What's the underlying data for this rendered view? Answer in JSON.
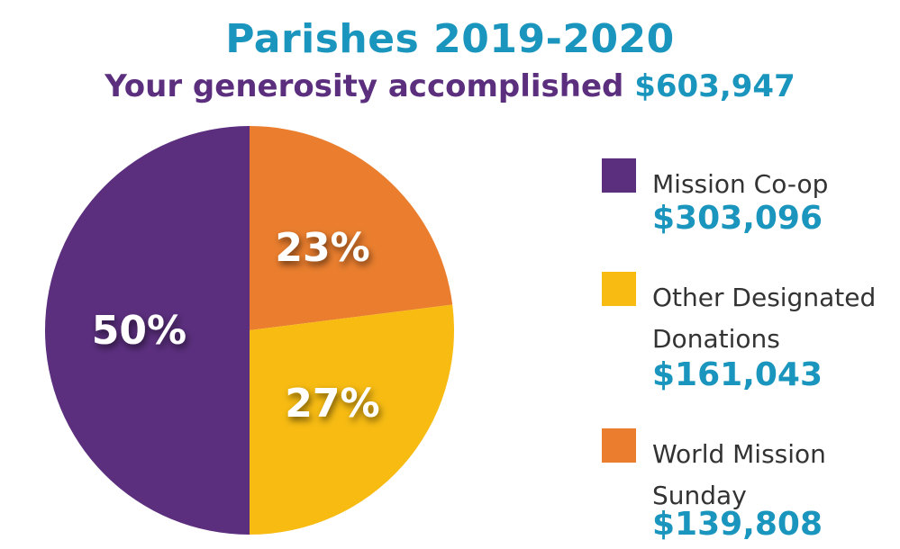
{
  "chart_data": {
    "type": "pie",
    "title": "Parishes 2019-2020",
    "subtitle_prefix": "Your generosity accomplished",
    "subtitle_amount": "$603,947",
    "slices": [
      {
        "label": "Mission Co-op",
        "value": 303096,
        "value_label": "$303,096",
        "percent": 50,
        "percent_label": "50%",
        "color": "#5b2f7e"
      },
      {
        "label": "Other Designated Donations",
        "value": 161043,
        "value_label": "$161,043",
        "percent": 27,
        "percent_label": "27%",
        "color": "#f7bb12"
      },
      {
        "label": "World Mission Sunday",
        "value": 139808,
        "value_label": "$139,808",
        "percent": 23,
        "percent_label": "23%",
        "color": "#ea7e2e"
      }
    ],
    "legend_position": "right"
  }
}
